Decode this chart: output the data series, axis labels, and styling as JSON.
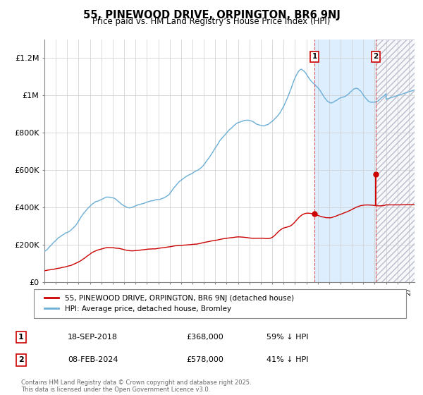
{
  "title": "55, PINEWOOD DRIVE, ORPINGTON, BR6 9NJ",
  "subtitle": "Price paid vs. HM Land Registry’s House Price Index (HPI)",
  "xlim_start": 1995.0,
  "xlim_end": 2027.5,
  "ylim": [
    0,
    1300000
  ],
  "hpi_color": "#6baed6",
  "price_color": "#cc0000",
  "transaction1_x": 2018.72,
  "transaction1_y": 368000,
  "transaction2_x": 2024.1,
  "transaction2_y": 578000,
  "transaction2_y_before": 415000,
  "legend_price": "55, PINEWOOD DRIVE, ORPINGTON, BR6 9NJ (detached house)",
  "legend_hpi": "HPI: Average price, detached house, Bromley",
  "annotation1_date": "18-SEP-2018",
  "annotation1_price": "£368,000",
  "annotation1_hpi": "59% ↓ HPI",
  "annotation2_date": "08-FEB-2024",
  "annotation2_price": "£578,000",
  "annotation2_hpi": "41% ↓ HPI",
  "footnote": "Contains HM Land Registry data © Crown copyright and database right 2025.\nThis data is licensed under the Open Government Licence v3.0.",
  "bg_highlight_color": "#ddeeff",
  "ytick_labels": [
    "£0",
    "£200K",
    "£400K",
    "£600K",
    "£800K",
    "£1M",
    "£1.2M"
  ],
  "ytick_values": [
    0,
    200000,
    400000,
    600000,
    800000,
    1000000,
    1200000
  ]
}
